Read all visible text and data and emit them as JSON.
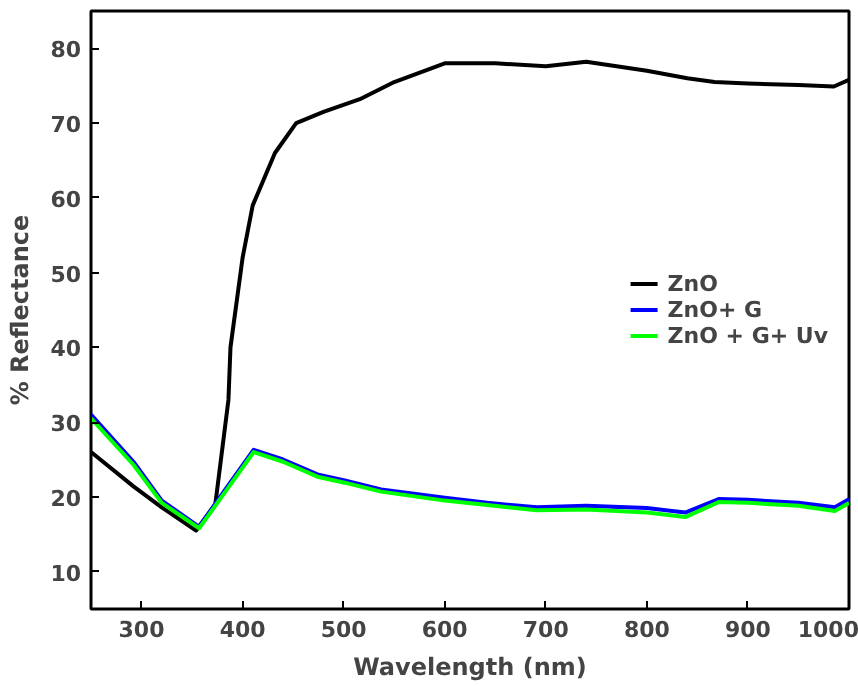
{
  "chart_data": {
    "type": "line",
    "xlabel": "Wavelength (nm)",
    "ylabel": "% Reflectance",
    "xlim": [
      250,
      1000
    ],
    "ylim": [
      5,
      85
    ],
    "xticks": [
      300,
      400,
      500,
      600,
      700,
      800,
      900,
      1000
    ],
    "yticks": [
      10,
      20,
      30,
      40,
      50,
      60,
      70,
      80
    ],
    "grid": false,
    "legend": "right",
    "marker": "none",
    "line_style": "solid",
    "series": [
      {
        "name": "ZnO",
        "color": "#000000",
        "x": [
          250,
          292,
          320,
          354,
          373,
          386,
          388,
          400,
          410,
          432,
          453,
          480,
          516,
          550,
          600,
          650,
          700,
          740,
          800,
          840,
          867,
          900,
          950,
          985,
          1000
        ],
        "values": [
          26,
          21.4,
          18.6,
          15.5,
          19,
          33,
          40,
          52,
          59,
          66,
          70,
          71.5,
          73.2,
          75.5,
          78,
          78,
          77.6,
          78.2,
          77,
          76,
          75.5,
          75.3,
          75.1,
          74.9,
          75.8
        ]
      },
      {
        "name": "ZnO+ G",
        "color": "#0000ff",
        "x": [
          250,
          292,
          320,
          357,
          383,
          411,
          440,
          474,
          501,
          537,
          600,
          642,
          691,
          740,
          800,
          838,
          871,
          900,
          950,
          986,
          1000
        ],
        "values": [
          31,
          24.7,
          19.5,
          16,
          21,
          26.3,
          25,
          23,
          22.2,
          21,
          19.9,
          19.2,
          18.6,
          18.8,
          18.5,
          17.9,
          19.7,
          19.6,
          19.2,
          18.6,
          19.7
        ]
      },
      {
        "name": "ZnO + G+ Uv",
        "color": "#00ff00",
        "x": [
          250,
          292,
          320,
          357,
          383,
          411,
          440,
          474,
          501,
          537,
          600,
          642,
          691,
          740,
          800,
          838,
          871,
          900,
          950,
          986,
          1000
        ],
        "values": [
          30.5,
          24.3,
          19.2,
          15.8,
          20.7,
          26,
          24.7,
          22.7,
          21.9,
          20.7,
          19.5,
          18.9,
          18.2,
          18.3,
          17.9,
          17.3,
          19.3,
          19.2,
          18.8,
          18.1,
          19.2
        ]
      }
    ]
  }
}
